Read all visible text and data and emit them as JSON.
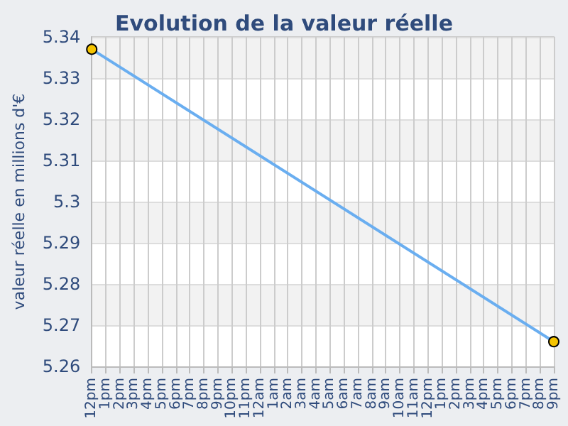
{
  "chart_data": {
    "type": "line",
    "title": "Evolution de la valeur réelle",
    "ylabel": "valeur réelle en millions d'€",
    "categories": [
      "12pm",
      "1pm",
      "2pm",
      "3pm",
      "4pm",
      "5pm",
      "6pm",
      "7pm",
      "8pm",
      "9pm",
      "10pm",
      "11pm",
      "12am",
      "1am",
      "2am",
      "3am",
      "4am",
      "5am",
      "6am",
      "7am",
      "8am",
      "9am",
      "10am",
      "11am",
      "12pm",
      "1pm",
      "2pm",
      "3pm",
      "4pm",
      "5pm",
      "6pm",
      "7pm",
      "8pm",
      "9pm"
    ],
    "series": [
      {
        "color": "#6aaef0",
        "values": [
          5.337,
          null,
          null,
          null,
          null,
          null,
          null,
          null,
          null,
          null,
          null,
          null,
          null,
          null,
          null,
          null,
          null,
          null,
          null,
          null,
          null,
          null,
          null,
          null,
          null,
          null,
          null,
          null,
          null,
          null,
          null,
          null,
          null,
          5.266
        ]
      }
    ],
    "ylim": [
      5.26,
      5.34
    ],
    "yticks": [
      5.26,
      5.27,
      5.28,
      5.29,
      5.3,
      5.31,
      5.32,
      5.33,
      5.34
    ],
    "grid": true,
    "marker": "circle",
    "line_style": "solid"
  }
}
